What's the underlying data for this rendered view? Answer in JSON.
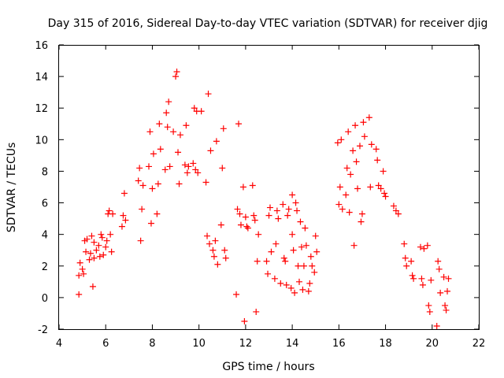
{
  "chart_data": {
    "type": "scatter",
    "title": "Day 315 of 2016, Sidereal Day-to-day VTEC variation (SDTVAR) for receiver djig",
    "xlabel": "GPS time / hours",
    "ylabel": "SDTVAR / TECUs",
    "xlim": [
      4,
      22
    ],
    "ylim": [
      -2,
      16
    ],
    "xticks": [
      "4",
      "6",
      "8",
      "10",
      "12",
      "14",
      "16",
      "18",
      "20",
      "22"
    ],
    "yticks": [
      "-2",
      "0",
      "2",
      "4",
      "6",
      "8",
      "10",
      "12",
      "14",
      "16"
    ],
    "grid": false,
    "legend": "none",
    "marker": "plus",
    "color": "#ff0000",
    "series": [
      {
        "name": "SDTVAR",
        "points": [
          [
            4.85,
            0.2
          ],
          [
            4.85,
            1.4
          ],
          [
            4.9,
            2.2
          ],
          [
            5.0,
            1.8
          ],
          [
            5.05,
            1.5
          ],
          [
            5.1,
            3.6
          ],
          [
            5.15,
            2.9
          ],
          [
            5.2,
            3.7
          ],
          [
            5.3,
            2.4
          ],
          [
            5.35,
            2.8
          ],
          [
            5.4,
            3.9
          ],
          [
            5.45,
            0.7
          ],
          [
            5.5,
            3.5
          ],
          [
            5.5,
            2.5
          ],
          [
            5.6,
            3.0
          ],
          [
            5.7,
            3.3
          ],
          [
            5.75,
            2.6
          ],
          [
            5.8,
            4.0
          ],
          [
            5.85,
            3.8
          ],
          [
            5.9,
            2.7
          ],
          [
            6.0,
            3.2
          ],
          [
            6.05,
            3.6
          ],
          [
            6.1,
            5.3
          ],
          [
            6.15,
            5.5
          ],
          [
            6.2,
            4.0
          ],
          [
            6.25,
            2.9
          ],
          [
            6.3,
            5.3
          ],
          [
            6.7,
            4.5
          ],
          [
            6.75,
            5.2
          ],
          [
            6.8,
            6.6
          ],
          [
            6.85,
            4.9
          ],
          [
            7.4,
            7.4
          ],
          [
            7.45,
            8.2
          ],
          [
            7.5,
            3.6
          ],
          [
            7.55,
            5.6
          ],
          [
            7.6,
            7.1
          ],
          [
            7.85,
            8.3
          ],
          [
            7.9,
            10.5
          ],
          [
            7.95,
            4.7
          ],
          [
            8.0,
            6.9
          ],
          [
            8.05,
            9.1
          ],
          [
            8.2,
            5.3
          ],
          [
            8.25,
            7.2
          ],
          [
            8.3,
            11.0
          ],
          [
            8.35,
            9.4
          ],
          [
            8.55,
            8.1
          ],
          [
            8.6,
            11.7
          ],
          [
            8.65,
            10.8
          ],
          [
            8.7,
            12.4
          ],
          [
            8.75,
            8.3
          ],
          [
            8.9,
            10.5
          ],
          [
            9.0,
            14.0
          ],
          [
            9.05,
            14.3
          ],
          [
            9.1,
            9.2
          ],
          [
            9.15,
            7.2
          ],
          [
            9.2,
            10.3
          ],
          [
            9.4,
            8.4
          ],
          [
            9.45,
            10.9
          ],
          [
            9.5,
            7.9
          ],
          [
            9.55,
            8.3
          ],
          [
            9.75,
            8.5
          ],
          [
            9.8,
            12.0
          ],
          [
            9.85,
            8.1
          ],
          [
            9.9,
            11.8
          ],
          [
            9.95,
            7.9
          ],
          [
            10.1,
            11.8
          ],
          [
            10.3,
            7.3
          ],
          [
            10.35,
            3.9
          ],
          [
            10.4,
            12.9
          ],
          [
            10.45,
            3.4
          ],
          [
            10.5,
            9.3
          ],
          [
            10.6,
            3.0
          ],
          [
            10.65,
            2.6
          ],
          [
            10.7,
            3.6
          ],
          [
            10.75,
            9.9
          ],
          [
            10.8,
            2.1
          ],
          [
            10.95,
            4.6
          ],
          [
            11.0,
            8.2
          ],
          [
            11.05,
            10.7
          ],
          [
            11.1,
            3.0
          ],
          [
            11.15,
            2.5
          ],
          [
            11.6,
            0.2
          ],
          [
            11.65,
            5.6
          ],
          [
            11.7,
            11.0
          ],
          [
            11.75,
            5.3
          ],
          [
            11.8,
            4.6
          ],
          [
            11.9,
            7.0
          ],
          [
            11.95,
            -1.5
          ],
          [
            12.0,
            5.1
          ],
          [
            12.05,
            4.5
          ],
          [
            12.1,
            4.4
          ],
          [
            12.3,
            7.1
          ],
          [
            12.35,
            5.2
          ],
          [
            12.4,
            4.9
          ],
          [
            12.45,
            -0.9
          ],
          [
            12.5,
            2.3
          ],
          [
            12.55,
            4.0
          ],
          [
            12.9,
            2.3
          ],
          [
            12.95,
            1.5
          ],
          [
            13.0,
            5.2
          ],
          [
            13.05,
            5.7
          ],
          [
            13.1,
            2.9
          ],
          [
            13.25,
            1.2
          ],
          [
            13.3,
            3.4
          ],
          [
            13.35,
            5.5
          ],
          [
            13.4,
            5.0
          ],
          [
            13.5,
            0.9
          ],
          [
            13.6,
            5.9
          ],
          [
            13.65,
            2.5
          ],
          [
            13.7,
            2.3
          ],
          [
            13.75,
            0.8
          ],
          [
            13.8,
            5.2
          ],
          [
            13.85,
            5.6
          ],
          [
            13.95,
            0.6
          ],
          [
            14.0,
            6.5
          ],
          [
            14.0,
            4.0
          ],
          [
            14.05,
            3.0
          ],
          [
            14.1,
            0.3
          ],
          [
            14.15,
            6.0
          ],
          [
            14.2,
            5.5
          ],
          [
            14.25,
            2.0
          ],
          [
            14.3,
            1.0
          ],
          [
            14.35,
            4.8
          ],
          [
            14.4,
            3.2
          ],
          [
            14.45,
            0.5
          ],
          [
            14.5,
            2.0
          ],
          [
            14.55,
            4.4
          ],
          [
            14.6,
            3.3
          ],
          [
            14.7,
            0.4
          ],
          [
            14.75,
            0.9
          ],
          [
            14.8,
            2.6
          ],
          [
            14.85,
            2.0
          ],
          [
            14.95,
            1.6
          ],
          [
            15.0,
            3.9
          ],
          [
            15.05,
            2.9
          ],
          [
            15.95,
            9.8
          ],
          [
            16.0,
            5.9
          ],
          [
            16.05,
            7.0
          ],
          [
            16.1,
            10.0
          ],
          [
            16.15,
            5.6
          ],
          [
            16.3,
            6.5
          ],
          [
            16.35,
            8.2
          ],
          [
            16.4,
            10.5
          ],
          [
            16.45,
            5.4
          ],
          [
            16.5,
            7.8
          ],
          [
            16.6,
            9.3
          ],
          [
            16.65,
            3.3
          ],
          [
            16.7,
            10.9
          ],
          [
            16.75,
            8.6
          ],
          [
            16.8,
            6.9
          ],
          [
            16.9,
            9.6
          ],
          [
            16.95,
            4.8
          ],
          [
            17.0,
            5.3
          ],
          [
            17.05,
            11.1
          ],
          [
            17.1,
            10.2
          ],
          [
            17.3,
            11.4
          ],
          [
            17.35,
            7.0
          ],
          [
            17.4,
            9.7
          ],
          [
            17.6,
            9.4
          ],
          [
            17.65,
            8.7
          ],
          [
            17.7,
            7.1
          ],
          [
            17.8,
            6.9
          ],
          [
            17.9,
            8.0
          ],
          [
            17.95,
            6.6
          ],
          [
            18.0,
            6.4
          ],
          [
            18.35,
            5.8
          ],
          [
            18.45,
            5.5
          ],
          [
            18.55,
            5.3
          ],
          [
            18.8,
            3.4
          ],
          [
            18.85,
            2.5
          ],
          [
            18.9,
            2.0
          ],
          [
            19.1,
            2.3
          ],
          [
            19.15,
            1.4
          ],
          [
            19.2,
            1.2
          ],
          [
            19.5,
            3.2
          ],
          [
            19.55,
            1.2
          ],
          [
            19.6,
            0.8
          ],
          [
            19.65,
            3.1
          ],
          [
            19.8,
            3.3
          ],
          [
            19.85,
            -0.5
          ],
          [
            19.9,
            -0.9
          ],
          [
            19.95,
            1.1
          ],
          [
            20.2,
            -1.8
          ],
          [
            20.25,
            2.3
          ],
          [
            20.3,
            1.8
          ],
          [
            20.35,
            0.3
          ],
          [
            20.5,
            1.3
          ],
          [
            20.55,
            -0.5
          ],
          [
            20.6,
            -0.8
          ],
          [
            20.65,
            0.4
          ],
          [
            20.7,
            1.2
          ]
        ]
      }
    ]
  }
}
